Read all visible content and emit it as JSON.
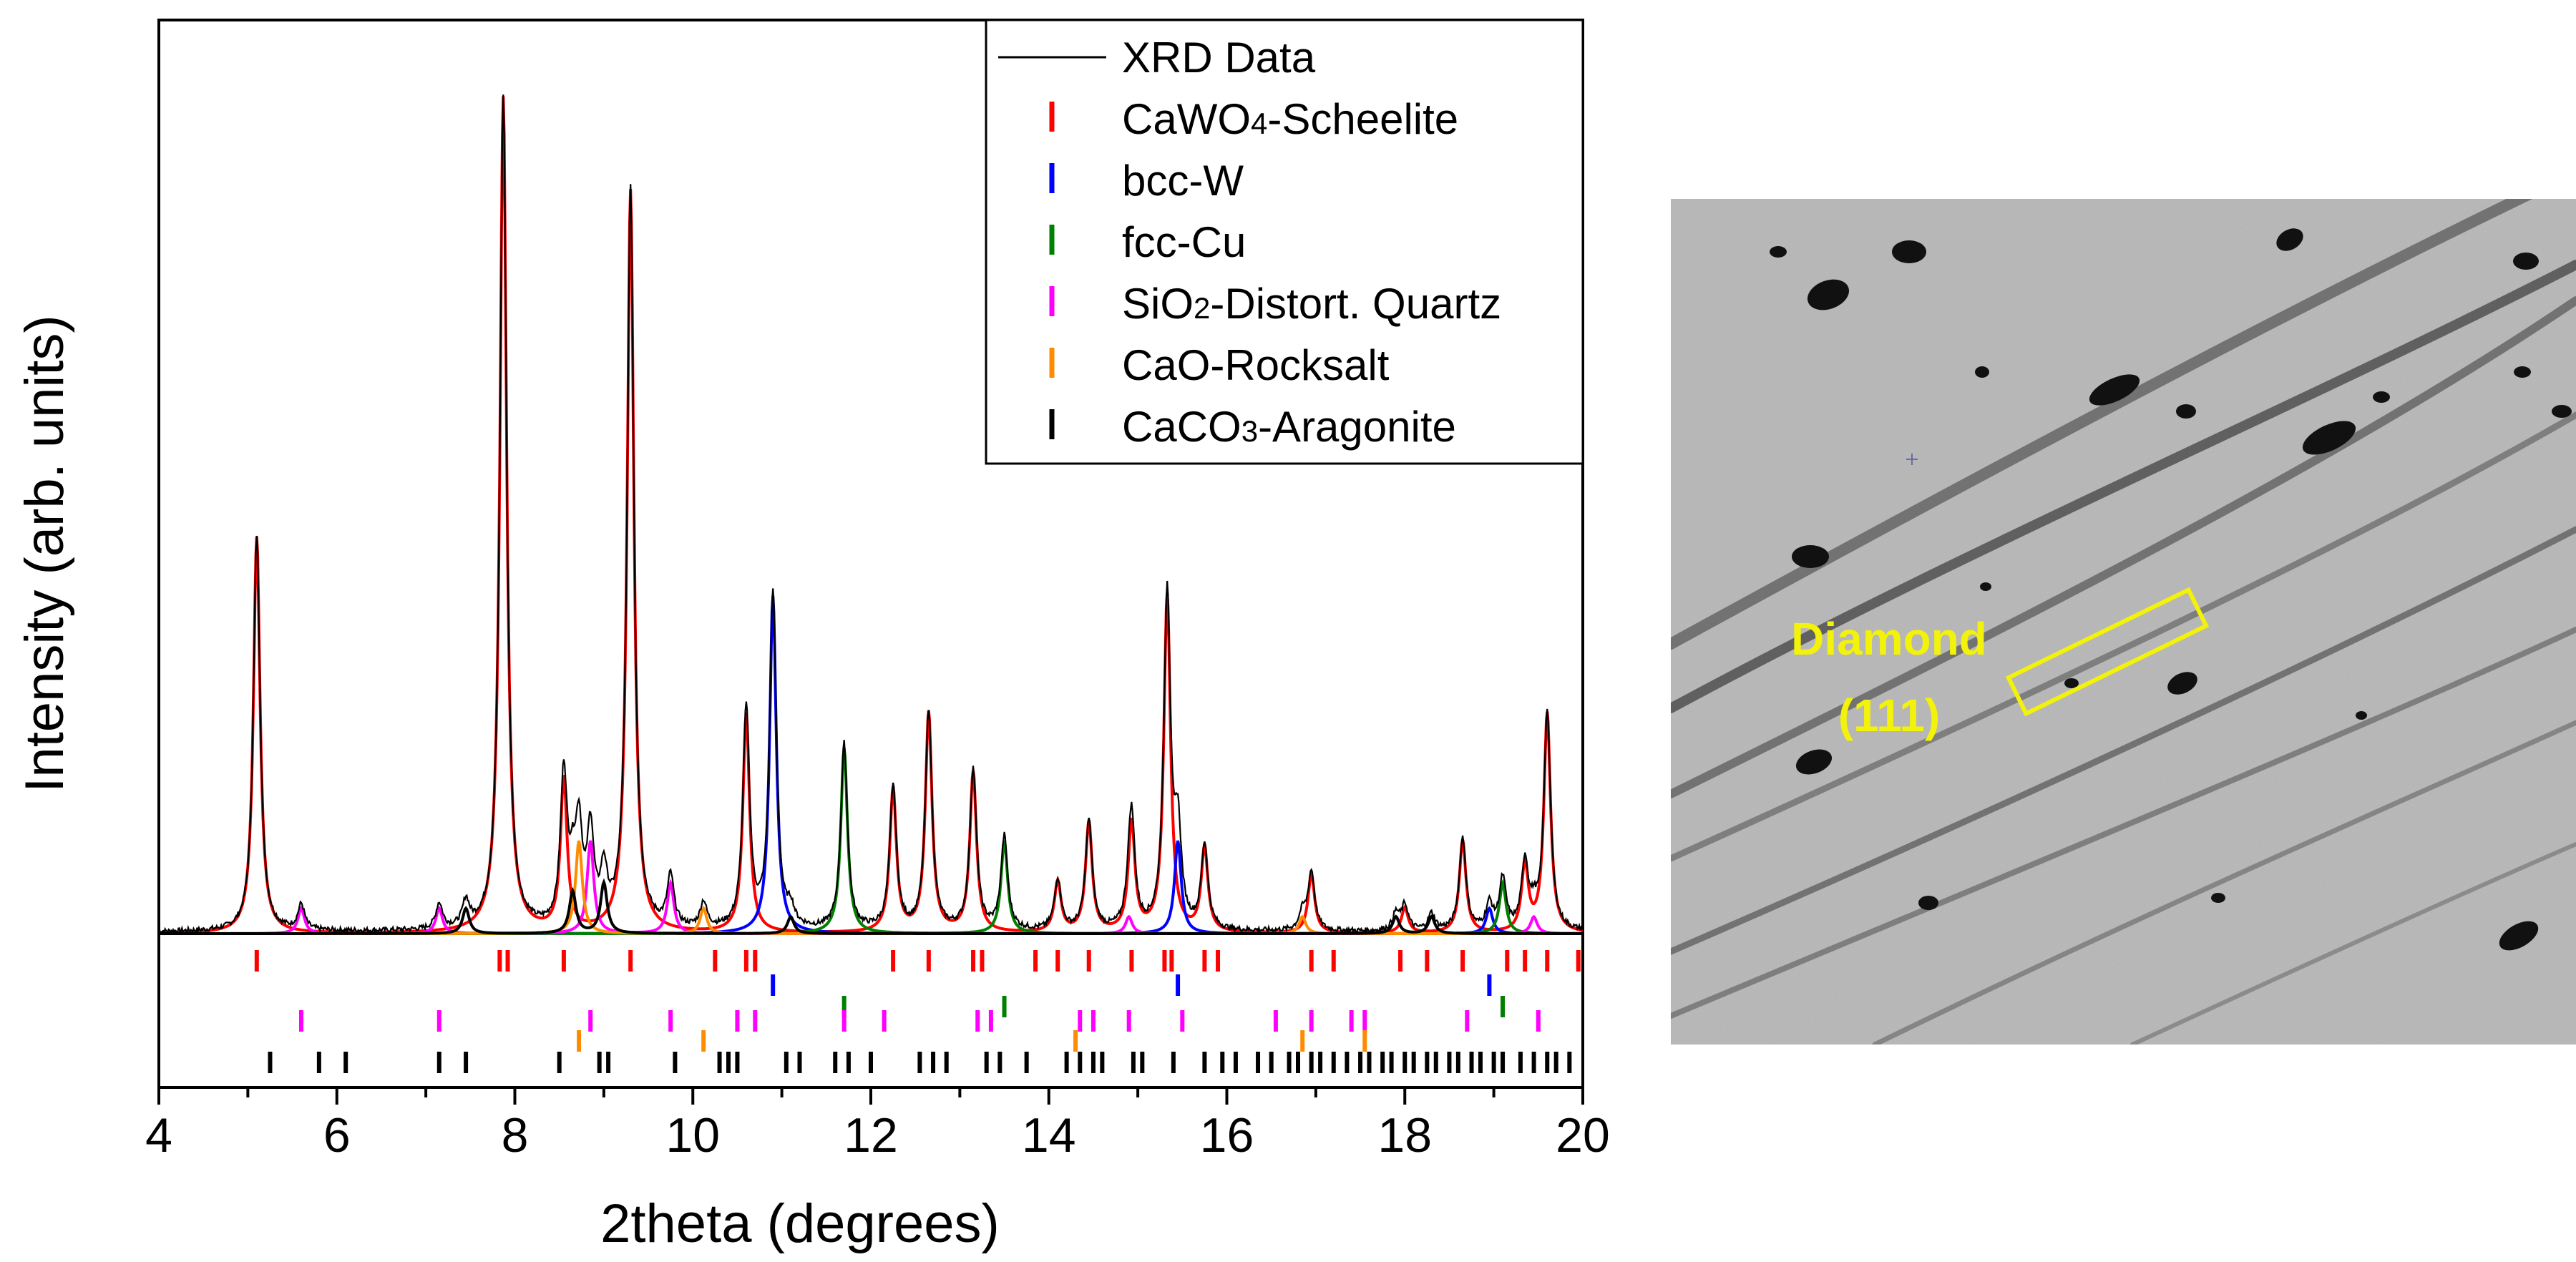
{
  "chart_data": {
    "type": "line",
    "title": "",
    "xlabel": "2theta (degrees)",
    "ylabel": "Intensity (arb. units)",
    "xlim": [
      4,
      20
    ],
    "ylim": [
      0,
      1
    ],
    "x_ticks": [
      "4",
      "6",
      "8",
      "10",
      "12",
      "14",
      "16",
      "18",
      "20"
    ],
    "legend_position": "top-right",
    "legend": [
      {
        "key": "xrd",
        "type": "line",
        "color": "#000000",
        "parts": [
          {
            "t": "XRD Data"
          }
        ]
      },
      {
        "key": "scheelite",
        "type": "tick",
        "color": "#ff0000",
        "parts": [
          {
            "t": "CaWO"
          },
          {
            "t": "4",
            "sub": true
          },
          {
            "t": "-Scheelite"
          }
        ]
      },
      {
        "key": "bccW",
        "type": "tick",
        "color": "#0000ff",
        "parts": [
          {
            "t": "bcc-W"
          }
        ]
      },
      {
        "key": "fccCu",
        "type": "tick",
        "color": "#008000",
        "parts": [
          {
            "t": "fcc-Cu"
          }
        ]
      },
      {
        "key": "quartz",
        "type": "tick",
        "color": "#ff00ff",
        "parts": [
          {
            "t": "SiO"
          },
          {
            "t": "2",
            "sub": true
          },
          {
            "t": "-Distort. Quartz"
          }
        ]
      },
      {
        "key": "rocksalt",
        "type": "tick",
        "color": "#ff8c00",
        "parts": [
          {
            "t": "CaO-Rocksalt"
          }
        ]
      },
      {
        "key": "aragonite",
        "type": "tick",
        "color": "#000000",
        "parts": [
          {
            "t": "CaCO"
          },
          {
            "t": "3",
            "sub": true
          },
          {
            "t": "-Aragonite"
          }
        ]
      }
    ],
    "series": [
      {
        "name": "CaWO4-Scheelite",
        "color": "#ff0000",
        "peaks": [
          [
            5.1,
            0.47
          ],
          [
            7.87,
            0.99
          ],
          [
            8.55,
            0.18
          ],
          [
            9.3,
            0.88
          ],
          [
            10.6,
            0.26
          ],
          [
            12.25,
            0.17
          ],
          [
            12.65,
            0.26
          ],
          [
            13.15,
            0.19
          ],
          [
            14.1,
            0.06
          ],
          [
            14.45,
            0.13
          ],
          [
            14.93,
            0.13
          ],
          [
            15.33,
            0.4
          ],
          [
            15.75,
            0.1
          ],
          [
            16.95,
            0.07
          ],
          [
            18.0,
            0.03
          ],
          [
            18.65,
            0.11
          ],
          [
            19.35,
            0.08
          ],
          [
            19.6,
            0.26
          ]
        ]
      },
      {
        "name": "bcc-W",
        "color": "#0000ff",
        "peaks": [
          [
            10.9,
            0.4
          ],
          [
            15.45,
            0.11
          ],
          [
            18.95,
            0.03
          ]
        ]
      },
      {
        "name": "fcc-Cu",
        "color": "#008000",
        "peaks": [
          [
            11.7,
            0.22
          ],
          [
            13.5,
            0.11
          ],
          [
            19.1,
            0.06
          ]
        ]
      },
      {
        "name": "SiO2-Distort. Quartz",
        "color": "#ff00ff",
        "peaks": [
          [
            5.6,
            0.03
          ],
          [
            7.15,
            0.03
          ],
          [
            8.85,
            0.11
          ],
          [
            9.75,
            0.06
          ],
          [
            14.9,
            0.02
          ],
          [
            19.45,
            0.02
          ]
        ]
      },
      {
        "name": "CaO-Rocksalt",
        "color": "#ff8c00",
        "peaks": [
          [
            8.72,
            0.11
          ],
          [
            10.12,
            0.03
          ],
          [
            16.85,
            0.02
          ]
        ]
      },
      {
        "name": "CaCO3-Aragonite",
        "color": "#000000",
        "peaks": [
          [
            7.45,
            0.03
          ],
          [
            8.65,
            0.05
          ],
          [
            9.0,
            0.06
          ],
          [
            11.1,
            0.02
          ],
          [
            17.9,
            0.02
          ],
          [
            18.3,
            0.02
          ]
        ]
      }
    ],
    "reference_ticks": {
      "scheelite": [
        5.1,
        7.83,
        7.92,
        8.55,
        9.3,
        10.25,
        10.6,
        10.7,
        12.25,
        12.65,
        13.15,
        13.25,
        13.85,
        14.1,
        14.45,
        14.93,
        15.3,
        15.38,
        15.75,
        15.9,
        16.95,
        17.2,
        17.95,
        18.25,
        18.65,
        19.15,
        19.35,
        19.6,
        19.95
      ],
      "bccW": [
        10.9,
        15.45,
        18.95
      ],
      "fccCu": [
        11.7,
        13.5,
        19.1
      ],
      "quartz": [
        5.6,
        7.15,
        8.85,
        9.75,
        10.5,
        10.7,
        11.7,
        12.15,
        13.2,
        13.35,
        14.35,
        14.5,
        14.9,
        15.5,
        16.55,
        16.95,
        17.4,
        17.55,
        18.7,
        19.5
      ],
      "rocksalt": [
        8.72,
        10.12,
        14.3,
        16.85,
        17.55
      ],
      "aragonite": [
        5.25,
        5.8,
        6.1,
        7.15,
        7.45,
        8.5,
        8.95,
        9.05,
        9.8,
        10.3,
        10.4,
        10.5,
        11.05,
        11.2,
        11.6,
        11.75,
        12.0,
        12.55,
        12.7,
        12.85,
        13.3,
        13.45,
        13.75,
        14.2,
        14.35,
        14.5,
        14.6,
        14.95,
        15.05,
        15.4,
        15.75,
        15.95,
        16.1,
        16.35,
        16.5,
        16.7,
        16.8,
        16.95,
        17.05,
        17.2,
        17.35,
        17.5,
        17.6,
        17.75,
        17.85,
        18.0,
        18.1,
        18.25,
        18.35,
        18.5,
        18.6,
        18.75,
        18.85,
        19.0,
        19.1,
        19.3,
        19.45,
        19.6,
        19.7,
        19.85
      ]
    }
  },
  "detector_image": {
    "annotation": {
      "line1": "Diamond",
      "line2": "(111)",
      "color": "#f2f20a"
    }
  }
}
